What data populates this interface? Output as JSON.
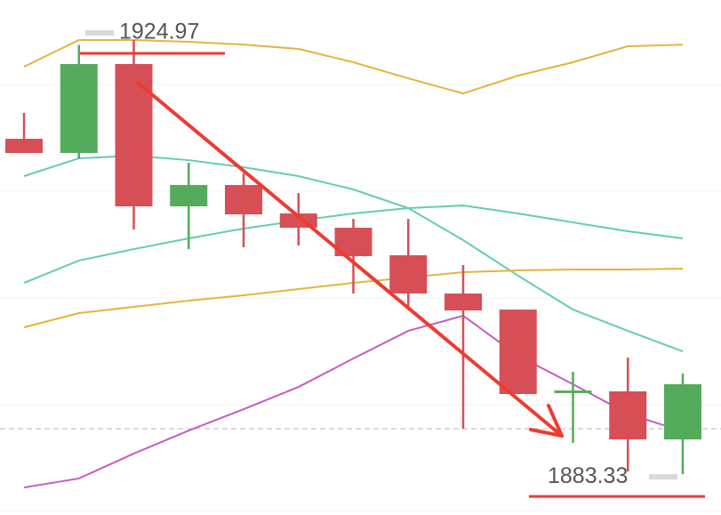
{
  "chart_data": {
    "type": "candlestick",
    "categories": [
      null,
      null,
      null,
      null,
      null,
      null,
      null,
      null,
      null,
      null,
      null,
      null,
      null
    ],
    "open": [
      1915.5,
      1914.14,
      1922.67,
      1909.02,
      1911.07,
      1908.34,
      1906.97,
      1904.33,
      1900.66,
      1899.12,
      1891.11,
      1891.28,
      1886.67
    ],
    "close": [
      1914.14,
      1922.67,
      1909.02,
      1911.07,
      1908.25,
      1906.97,
      1904.24,
      1900.66,
      1899.04,
      1891.02,
      1891.36,
      1886.67,
      1891.96
    ],
    "high": [
      1917.98,
      1924.5,
      1924.97,
      1913.2,
      1912.17,
      1910.3,
      1907.82,
      1907.82,
      1903.39,
      1899.12,
      1893.15,
      1894.52,
      1892.98
    ],
    "low": [
      1914.14,
      1913.63,
      1906.8,
      1904.92,
      1905.1,
      1905.27,
      1900.66,
      1899.38,
      1887.69,
      1891.02,
      1886.33,
      1883.6,
      1883.33
    ],
    "up_color": "#55ab5c",
    "down_color": "#d64f56",
    "lines": [
      {
        "color": "#e6b33e",
        "values": [
          1922.41,
          1924.97,
          1924.97,
          1924.8,
          1924.53,
          1924.12,
          1922.84,
          1921.3,
          1919.85,
          1921.56,
          1922.84,
          1924.37,
          1924.53
        ]
      },
      {
        "color": "#62cdb2",
        "values": [
          1911.92,
          1913.63,
          1913.88,
          1913.45,
          1912.77,
          1911.92,
          1910.64,
          1908.85,
          1905.78,
          1902.37,
          1899.12,
          1897.08,
          1895.11
        ]
      },
      {
        "color": "#62cdb2",
        "values": [
          1901.68,
          1903.82,
          1904.92,
          1905.95,
          1906.89,
          1907.65,
          1908.34,
          1908.85,
          1909.1,
          1908.34,
          1907.48,
          1906.63,
          1905.95
        ]
      },
      {
        "color": "#e6b33e",
        "values": [
          1897.42,
          1898.78,
          1899.38,
          1899.98,
          1900.49,
          1901.09,
          1901.68,
          1902.19,
          1902.71,
          1902.88,
          1902.96,
          1902.96,
          1903.05
        ]
      },
      {
        "color": "#c75bbf",
        "values": [
          1882.06,
          1882.92,
          1885.31,
          1887.52,
          1889.57,
          1891.7,
          1894.43,
          1897.08,
          1898.53,
          1894.69,
          1891.96,
          1889.14,
          1887.44
        ]
      }
    ],
    "reference_line": 1887.69,
    "annotations": [
      {
        "value": 1924.97,
        "label": "1924.97"
      },
      {
        "value": 1883.33,
        "label": "1883.33"
      }
    ],
    "ylim": [
      1879.42,
      1928.81
    ]
  }
}
